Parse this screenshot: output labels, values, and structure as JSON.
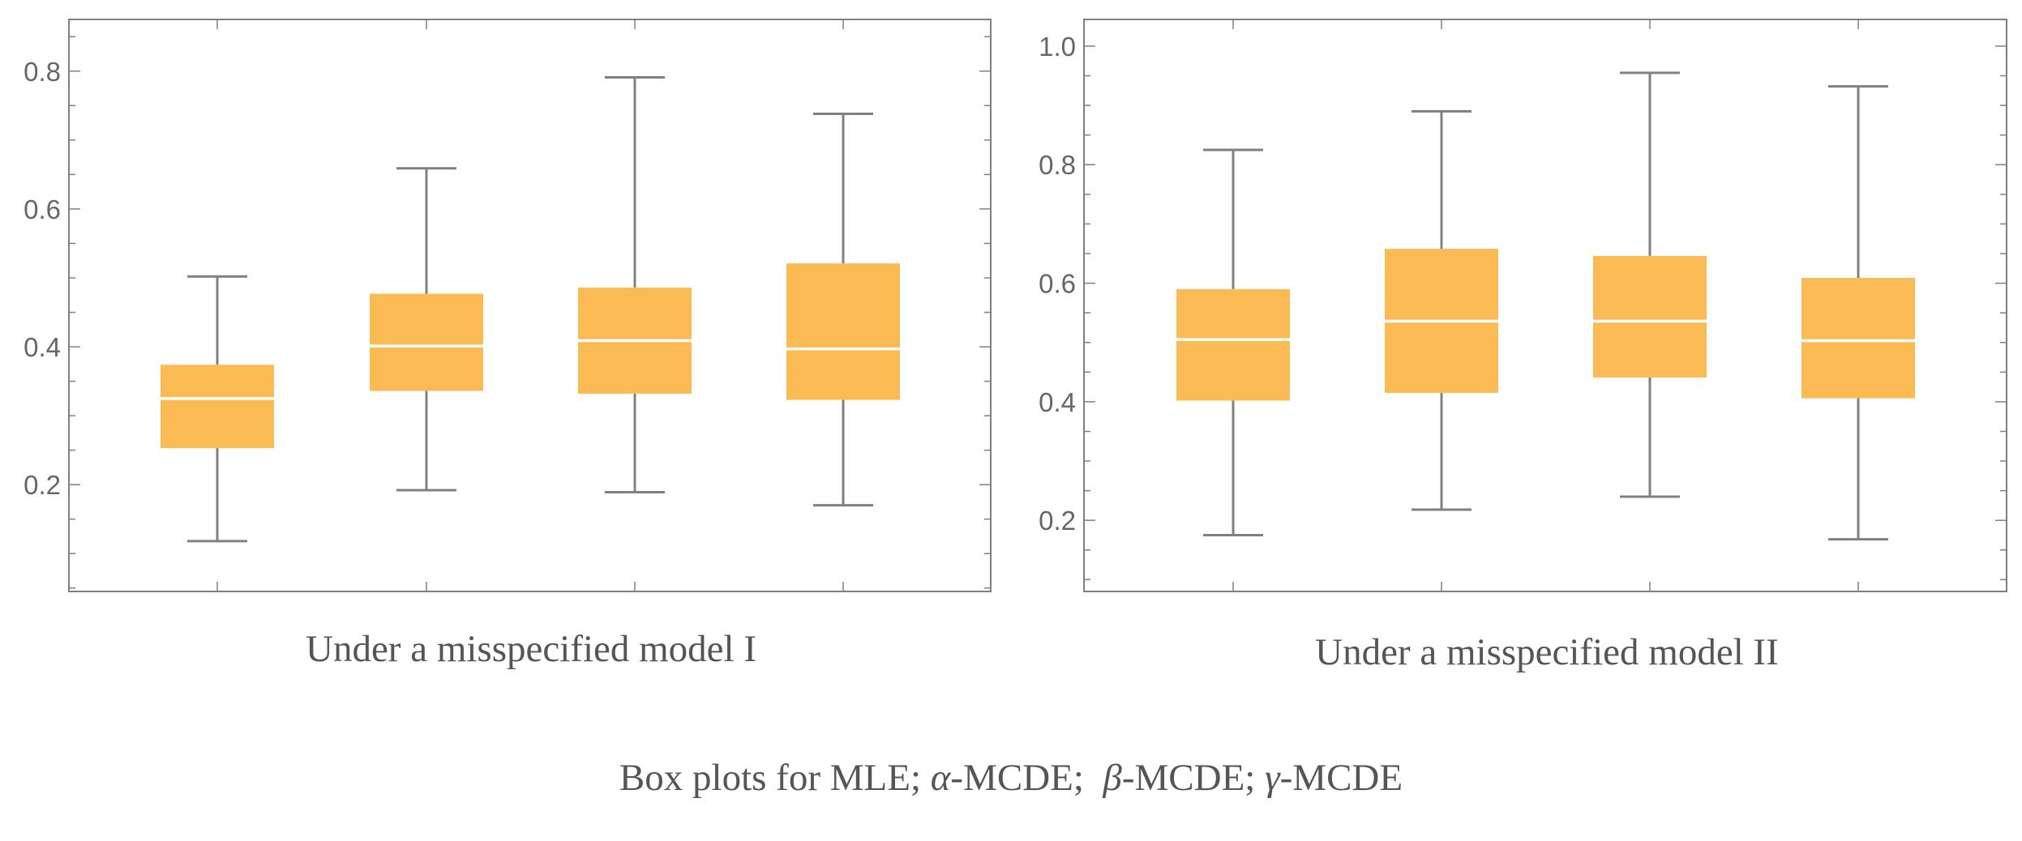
{
  "caption": {
    "prefix": "Box plots for MLE; ",
    "alpha": "α",
    "alpha_suffix": "-MCDE;  ",
    "beta": "β",
    "beta_suffix": "-MCDE; ",
    "gamma": "γ",
    "gamma_suffix": "-MCDE"
  },
  "colors": {
    "box_fill": "#FBBB54",
    "median_line": "#FFFFFF",
    "whisker": "#808080",
    "frame": "#808080",
    "tick_text": "#666666"
  },
  "chart_data": [
    {
      "type": "boxplot",
      "title": "Under a misspecified model I",
      "categories": [
        "MLE",
        "α-MCDE",
        "β-MCDE",
        "γ-MCDE"
      ],
      "ylim": [
        0.045,
        0.875
      ],
      "yticks": [
        0.2,
        0.4,
        0.6,
        0.8
      ],
      "ytick_labels": [
        "0.2",
        "0.4",
        "0.6",
        "0.8"
      ],
      "boxes": [
        {
          "min": 0.118,
          "q1": 0.253,
          "median": 0.325,
          "q3": 0.374,
          "max": 0.502
        },
        {
          "min": 0.192,
          "q1": 0.336,
          "median": 0.401,
          "q3": 0.477,
          "max": 0.659
        },
        {
          "min": 0.189,
          "q1": 0.332,
          "median": 0.409,
          "q3": 0.486,
          "max": 0.791
        },
        {
          "min": 0.17,
          "q1": 0.323,
          "median": 0.397,
          "q3": 0.521,
          "max": 0.738
        }
      ]
    },
    {
      "type": "boxplot",
      "title": "Under a misspecified model II",
      "categories": [
        "MLE",
        "α-MCDE",
        "β-MCDE",
        "γ-MCDE"
      ],
      "ylim": [
        0.08,
        1.045
      ],
      "yticks": [
        0.2,
        0.4,
        0.6,
        0.8,
        1.0
      ],
      "ytick_labels": [
        "0.2",
        "0.4",
        "0.6",
        "0.8",
        "1.0"
      ],
      "boxes": [
        {
          "min": 0.175,
          "q1": 0.402,
          "median": 0.505,
          "q3": 0.59,
          "max": 0.825
        },
        {
          "min": 0.218,
          "q1": 0.415,
          "median": 0.536,
          "q3": 0.658,
          "max": 0.89
        },
        {
          "min": 0.24,
          "q1": 0.441,
          "median": 0.536,
          "q3": 0.646,
          "max": 0.955
        },
        {
          "min": 0.168,
          "q1": 0.406,
          "median": 0.503,
          "q3": 0.609,
          "max": 0.932
        }
      ]
    }
  ]
}
